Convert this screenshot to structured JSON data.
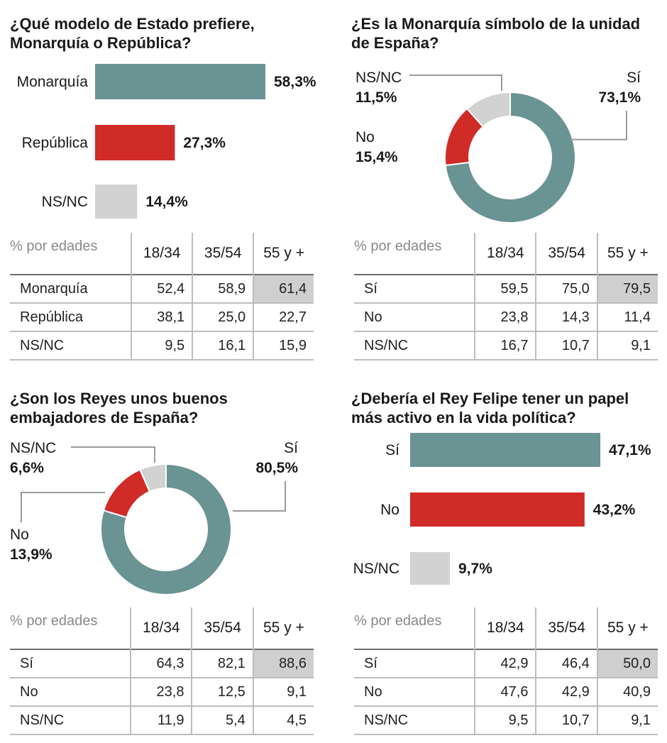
{
  "colors": {
    "teal": "#6a9393",
    "red": "#d02b27",
    "gray": "#d2d2d2",
    "line": "#9a9a9a"
  },
  "table_labels": {
    "age_header": "% por edades",
    "col1": "18/34",
    "col2": "35/54",
    "col3": "55 y +"
  },
  "chart_data": [
    {
      "type": "bar",
      "title": "¿Qué modelo de Estado prefiere,\nMonarquía o República?",
      "categories": [
        "Monarquía",
        "República",
        "NS/NC"
      ],
      "values": [
        58.3,
        27.3,
        14.4
      ],
      "value_labels": [
        "58,3%",
        "27,3%",
        "14,4%"
      ],
      "colors": [
        "#6a9393",
        "#d02b27",
        "#d2d2d2"
      ],
      "table": {
        "rows": [
          {
            "label": "Monarquía",
            "values": [
              "52,4",
              "58,9",
              "61,4"
            ]
          },
          {
            "label": "República",
            "values": [
              "38,1",
              "25,0",
              "22,7"
            ]
          },
          {
            "label": "NS/NC",
            "values": [
              "9,5",
              "16,1",
              "15,9"
            ]
          }
        ]
      }
    },
    {
      "type": "pie",
      "title": "¿Es la Monarquía símbolo de la unidad\nde España?",
      "categories": [
        "Sí",
        "No",
        "NS/NC"
      ],
      "values": [
        73.1,
        15.4,
        11.5
      ],
      "value_labels": [
        "73,1%",
        "15,4%",
        "11,5%"
      ],
      "colors": [
        "#6a9393",
        "#d02b27",
        "#d2d2d2"
      ],
      "table": {
        "rows": [
          {
            "label": "Sí",
            "values": [
              "59,5",
              "75,0",
              "79,5"
            ]
          },
          {
            "label": "No",
            "values": [
              "23,8",
              "14,3",
              "11,4"
            ]
          },
          {
            "label": "NS/NC",
            "values": [
              "16,7",
              "10,7",
              "9,1"
            ]
          }
        ]
      }
    },
    {
      "type": "pie",
      "title": "¿Son los Reyes unos buenos\nembajadores de España?",
      "categories": [
        "Sí",
        "No",
        "NS/NC"
      ],
      "values": [
        80.5,
        13.9,
        6.6
      ],
      "value_labels": [
        "80,5%",
        "13,9%",
        "6,6%"
      ],
      "colors": [
        "#6a9393",
        "#d02b27",
        "#d2d2d2"
      ],
      "table": {
        "rows": [
          {
            "label": "Sí",
            "values": [
              "64,3",
              "82,1",
              "88,6"
            ]
          },
          {
            "label": "No",
            "values": [
              "23,8",
              "12,5",
              "9,1"
            ]
          },
          {
            "label": "NS/NC",
            "values": [
              "11,9",
              "5,4",
              "4,5"
            ]
          }
        ]
      }
    },
    {
      "type": "bar",
      "title": "¿Debería el Rey Felipe tener un papel\nmás activo en la vida política?",
      "categories": [
        "Sí",
        "No",
        "NS/NC"
      ],
      "values": [
        47.1,
        43.2,
        9.7
      ],
      "value_labels": [
        "47,1%",
        "43,2%",
        "9,7%"
      ],
      "colors": [
        "#6a9393",
        "#d02b27",
        "#d2d2d2"
      ],
      "table": {
        "rows": [
          {
            "label": "Sí",
            "values": [
              "42,9",
              "46,4",
              "50,0"
            ]
          },
          {
            "label": "No",
            "values": [
              "47,6",
              "42,9",
              "40,9"
            ]
          },
          {
            "label": "NS/NC",
            "values": [
              "9,5",
              "10,7",
              "9,1"
            ]
          }
        ]
      }
    }
  ]
}
